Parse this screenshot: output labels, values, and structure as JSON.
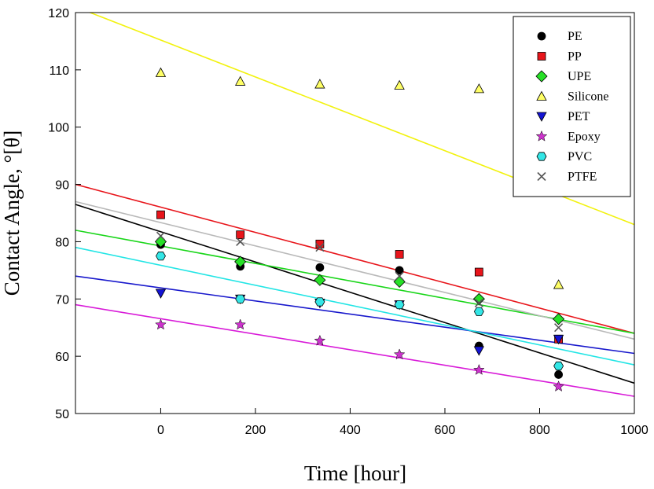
{
  "chart_data": {
    "type": "scatter",
    "xlabel": "Time [hour]",
    "ylabel": "Contact Angle, °[θ]",
    "xlim": [
      -180,
      1000
    ],
    "ylim": [
      50,
      120
    ],
    "xticks": [
      0,
      200,
      400,
      600,
      800,
      1000
    ],
    "yticks": [
      50,
      60,
      70,
      80,
      90,
      100,
      110,
      120
    ],
    "grid": false,
    "legend_position": "top-right",
    "series": [
      {
        "name": "PE",
        "marker": "circle",
        "color": "#000000",
        "line_color": "#000000",
        "x": [
          0,
          168,
          336,
          504,
          672,
          840
        ],
        "y": [
          79.5,
          75.7,
          75.5,
          75.0,
          61.8,
          56.8
        ],
        "fit": [
          [
            -180,
            86.5
          ],
          [
            1000,
            55.3
          ]
        ]
      },
      {
        "name": "PP",
        "marker": "square",
        "color": "#e8151b",
        "line_color": "#e8151b",
        "x": [
          0,
          168,
          336,
          504,
          672,
          840
        ],
        "y": [
          84.7,
          81.2,
          79.6,
          77.8,
          74.7,
          63.0
        ],
        "fit": [
          [
            -180,
            90.0
          ],
          [
            1000,
            64.0
          ]
        ]
      },
      {
        "name": "UPE",
        "marker": "diamond",
        "color": "#27e027",
        "line_color": "#19d619",
        "x": [
          0,
          168,
          336,
          504,
          672,
          840
        ],
        "y": [
          80.0,
          76.5,
          73.3,
          73.0,
          70.0,
          66.5
        ],
        "fit": [
          [
            -180,
            82.0
          ],
          [
            1000,
            64.0
          ]
        ]
      },
      {
        "name": "Silicone",
        "marker": "triangle-up",
        "color": "#ffff66",
        "line_color": "#f2f20e",
        "x": [
          0,
          168,
          336,
          504,
          672,
          840
        ],
        "y": [
          109.5,
          108.0,
          107.5,
          107.3,
          106.7,
          72.5
        ],
        "fit": [
          [
            -180,
            121.0
          ],
          [
            1000,
            83.0
          ]
        ]
      },
      {
        "name": "PET",
        "marker": "triangle-down",
        "color": "#1414d4",
        "line_color": "#1818cc",
        "x": [
          0,
          168,
          336,
          504,
          672,
          840
        ],
        "y": [
          71.0,
          70.0,
          69.3,
          69.0,
          61.0,
          63.0
        ],
        "fit": [
          [
            -180,
            74.0
          ],
          [
            1000,
            60.5
          ]
        ]
      },
      {
        "name": "Epoxy",
        "marker": "star",
        "color": "#cc33cc",
        "line_color": "#d81ad8",
        "x": [
          0,
          168,
          336,
          504,
          672,
          840
        ],
        "y": [
          65.5,
          65.5,
          62.7,
          60.3,
          57.6,
          54.7
        ],
        "fit": [
          [
            -180,
            69.0
          ],
          [
            1000,
            53.0
          ]
        ]
      },
      {
        "name": "PVC",
        "marker": "hexagon",
        "color": "#33e6e6",
        "line_color": "#22e5e5",
        "x": [
          0,
          168,
          336,
          504,
          672,
          840
        ],
        "y": [
          77.5,
          70.0,
          69.5,
          69.0,
          67.8,
          58.3
        ],
        "fit": [
          [
            -180,
            79.0
          ],
          [
            1000,
            58.5
          ]
        ]
      },
      {
        "name": "PTFE",
        "marker": "x",
        "color": "#555555",
        "line_color": "#b9b9b9",
        "x": [
          0,
          168,
          336,
          504,
          672,
          840
        ],
        "y": [
          81.0,
          80.0,
          79.0,
          74.0,
          69.3,
          65.0
        ],
        "fit": [
          [
            -180,
            87.0
          ],
          [
            1000,
            63.0
          ]
        ]
      }
    ]
  }
}
